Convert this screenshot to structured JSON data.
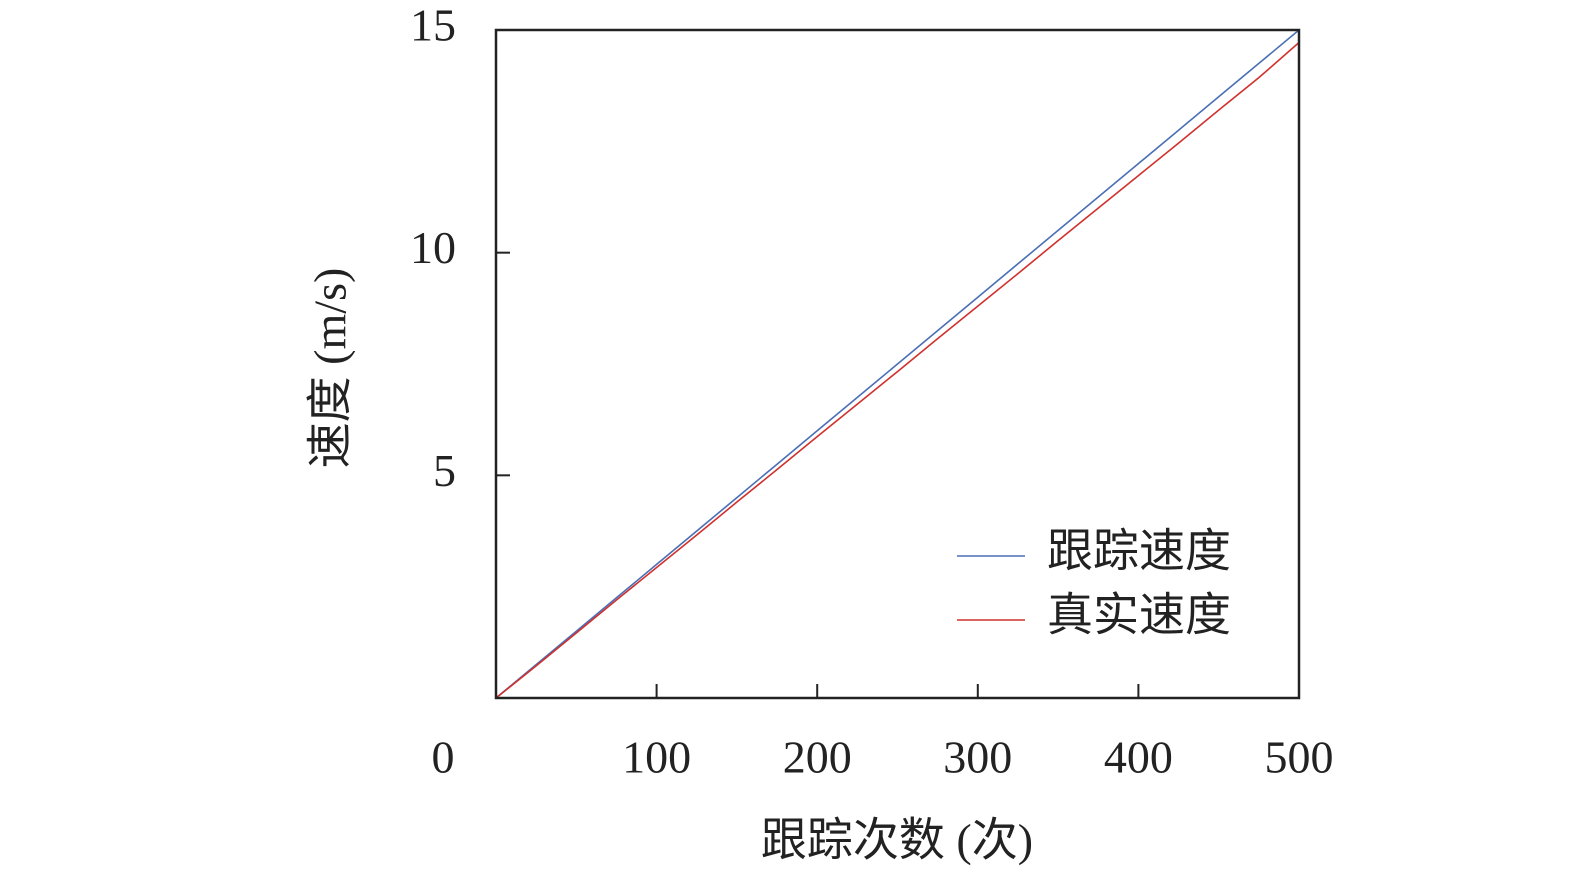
{
  "chart_data": {
    "type": "line",
    "xlabel": "跟踪次数 (次)",
    "ylabel": "速度 (m/s)",
    "x": [
      0,
      25,
      50,
      75,
      100,
      125,
      150,
      175,
      200,
      225,
      250,
      275,
      300,
      325,
      350,
      375,
      400,
      425,
      450,
      475,
      500
    ],
    "series": [
      {
        "name": "跟踪速度",
        "color": "#4a6fb5",
        "values": [
          0,
          0.75,
          1.5,
          2.25,
          3,
          3.75,
          4.5,
          5.25,
          6,
          6.75,
          7.5,
          8.25,
          9,
          9.75,
          10.5,
          11.25,
          12,
          12.75,
          13.5,
          14.25,
          15
        ]
      },
      {
        "name": "真实速度",
        "color": "#d0312d",
        "values": [
          0,
          0.72,
          1.46,
          2.2,
          2.93,
          3.66,
          4.4,
          5.13,
          5.87,
          6.6,
          7.33,
          8.07,
          8.8,
          9.53,
          10.27,
          11,
          11.73,
          12.46,
          13.2,
          13.93,
          14.72
        ]
      }
    ],
    "xlim": [
      0,
      500
    ],
    "xticks": [
      0,
      100,
      200,
      300,
      400,
      500
    ],
    "ylim": [
      0,
      15
    ],
    "yticks": [
      5,
      10,
      15
    ],
    "legend": "lower right"
  }
}
